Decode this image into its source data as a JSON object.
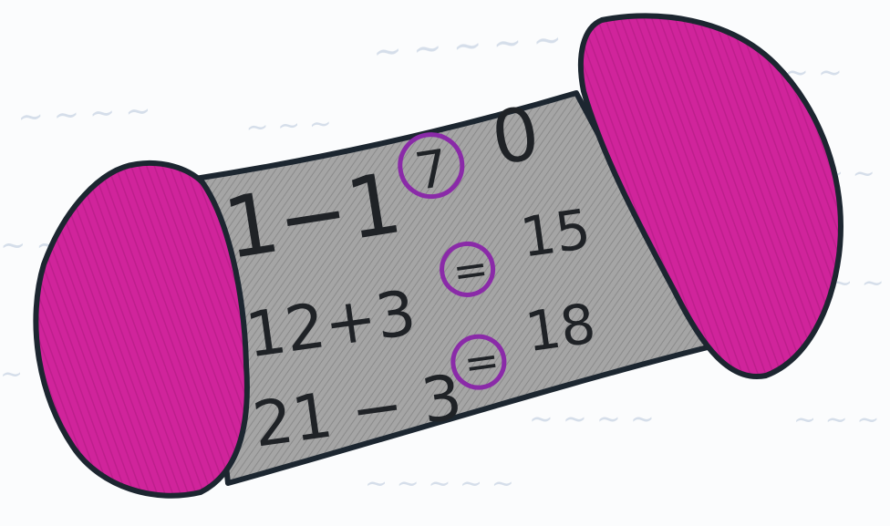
{
  "equations": [
    {
      "left": "1−1",
      "sign": "7",
      "right": "0"
    },
    {
      "left": "12+3",
      "sign": "=",
      "right": "15"
    },
    {
      "left": "21 − 3",
      "sign": "=",
      "right": "18"
    }
  ],
  "colors": {
    "magenta": "#d0249b",
    "magenta_dark": "#b81d86",
    "gray_body": "#9a9a9a",
    "gray_light": "#c4c4c4",
    "outline": "#1c2630",
    "circle_purple": "#8a2aa8",
    "ink": "#1f2226",
    "paper": "#fbfcfd",
    "bleed_through": "#c9d4e3"
  }
}
